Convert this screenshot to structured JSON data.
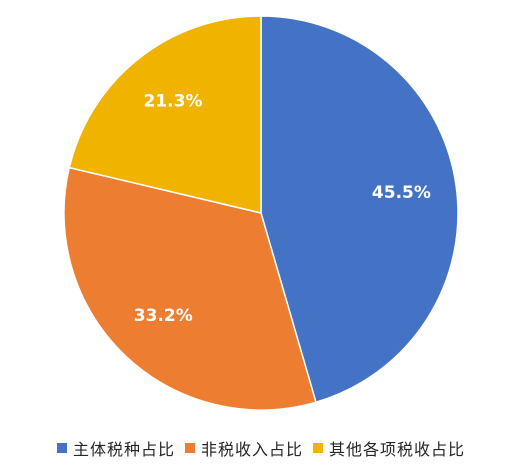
{
  "chart_data": {
    "type": "pie",
    "categories": [
      "主体税种占比",
      "非税收入占比",
      "其他各项税收占比"
    ],
    "values": [
      45.5,
      33.2,
      21.3
    ],
    "data_labels": [
      "45.5%",
      "33.2%",
      "21.3%"
    ],
    "colors": [
      "#4472C4",
      "#ED7D31",
      "#F0B400"
    ],
    "legend_position": "bottom",
    "start_angle": "12 o'clock",
    "direction": "clockwise"
  }
}
